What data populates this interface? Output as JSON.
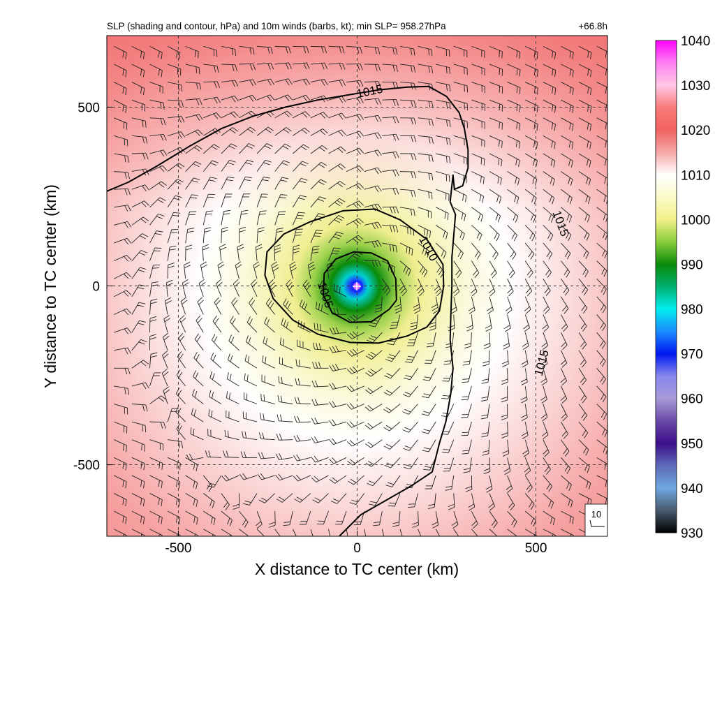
{
  "chart_data": {
    "type": "heatmap",
    "title": "SLP (shading and contour, hPa) and 10m winds (barbs, kt); min SLP= 958.27hPa",
    "time_label": "+66.8h",
    "xlabel": "X distance to TC center (km)",
    "ylabel": "Y distance to TC center (km)",
    "xlim": [
      -700,
      700
    ],
    "ylim": [
      -700,
      700
    ],
    "x_ticks": [
      -500,
      0,
      500
    ],
    "y_ticks": [
      -500,
      0,
      500
    ],
    "x_tick_labels": [
      "-500",
      "0",
      "500"
    ],
    "y_tick_labels": [
      "-500",
      "0",
      "500"
    ],
    "grid": "dashed at tick positions",
    "min_slp_hpa": 958.27,
    "center_km": [
      0,
      0
    ],
    "colorbar": {
      "ticks": [
        1040,
        1030,
        1020,
        1010,
        1000,
        990,
        980,
        970,
        960,
        950,
        940,
        930
      ],
      "tick_labels": [
        "1040",
        "1030",
        "1020",
        "1010",
        "1000",
        "990",
        "980",
        "970",
        "960",
        "950",
        "940",
        "930"
      ],
      "stops": [
        {
          "value": 930,
          "color": "#000000"
        },
        {
          "value": 935,
          "color": "#4a5a6e"
        },
        {
          "value": 940,
          "color": "#6fa8e0"
        },
        {
          "value": 945,
          "color": "#5e6ab8"
        },
        {
          "value": 950,
          "color": "#3d0f8a"
        },
        {
          "value": 955,
          "color": "#6a4aa8"
        },
        {
          "value": 960,
          "color": "#a89ad8"
        },
        {
          "value": 965,
          "color": "#8888ee"
        },
        {
          "value": 970,
          "color": "#0018f0"
        },
        {
          "value": 975,
          "color": "#1a8cff"
        },
        {
          "value": 980,
          "color": "#00eeee"
        },
        {
          "value": 985,
          "color": "#00b070"
        },
        {
          "value": 990,
          "color": "#0a8a0a"
        },
        {
          "value": 995,
          "color": "#8acc3a"
        },
        {
          "value": 1000,
          "color": "#f4f08a"
        },
        {
          "value": 1005,
          "color": "#fafac8"
        },
        {
          "value": 1010,
          "color": "#ffffff"
        },
        {
          "value": 1015,
          "color": "#f6a8a8"
        },
        {
          "value": 1020,
          "color": "#f26262"
        },
        {
          "value": 1025,
          "color": "#fa7a7a"
        },
        {
          "value": 1030,
          "color": "#ffc8e6"
        },
        {
          "value": 1035,
          "color": "#ff80f0"
        },
        {
          "value": 1040,
          "color": "#ff00ff"
        }
      ]
    },
    "contours": [
      {
        "level": 1005,
        "label": "1005",
        "points": [
          [
            110,
            -40
          ],
          [
            90,
            -65
          ],
          [
            40,
            -100
          ],
          [
            -20,
            -102
          ],
          [
            -70,
            -75
          ],
          [
            -95,
            -25
          ],
          [
            -92,
            35
          ],
          [
            -60,
            75
          ],
          [
            -10,
            95
          ],
          [
            40,
            92
          ],
          [
            85,
            70
          ],
          [
            108,
            20
          ],
          [
            110,
            -40
          ]
        ],
        "label_at": [
          -88,
          -25
        ],
        "label_angle": 72
      },
      {
        "level": 1010,
        "label": "1010",
        "points": [
          [
            242,
            0
          ],
          [
            230,
            -70
          ],
          [
            195,
            -115
          ],
          [
            140,
            -140
          ],
          [
            60,
            -160
          ],
          [
            -20,
            -158
          ],
          [
            -110,
            -135
          ],
          [
            -180,
            -95
          ],
          [
            -235,
            -35
          ],
          [
            -258,
            30
          ],
          [
            -252,
            95
          ],
          [
            -205,
            145
          ],
          [
            -130,
            180
          ],
          [
            -40,
            210
          ],
          [
            50,
            215
          ],
          [
            120,
            185
          ],
          [
            195,
            130
          ],
          [
            240,
            60
          ],
          [
            242,
            0
          ]
        ],
        "label_at": [
          200,
          105
        ],
        "label_angle": 62
      },
      {
        "level": 1015,
        "label": "1015",
        "points": [
          [
            -700,
            265
          ],
          [
            -640,
            290
          ],
          [
            -560,
            335
          ],
          [
            -470,
            390
          ],
          [
            -380,
            440
          ],
          [
            -290,
            475
          ],
          [
            -200,
            500
          ],
          [
            -110,
            520
          ],
          [
            -20,
            535
          ],
          [
            60,
            548
          ],
          [
            140,
            556
          ],
          [
            200,
            558
          ],
          [
            250,
            530
          ],
          [
            285,
            485
          ],
          [
            300,
            440
          ],
          [
            310,
            380
          ],
          [
            310,
            330
          ],
          [
            295,
            280
          ],
          [
            272,
            270
          ],
          [
            268,
            310
          ],
          [
            260,
            235
          ],
          [
            275,
            200
          ],
          [
            270,
            140
          ],
          [
            265,
            80
          ],
          [
            265,
            0
          ],
          [
            262,
            -80
          ],
          [
            260,
            -150
          ],
          [
            268,
            -230
          ],
          [
            262,
            -300
          ],
          [
            248,
            -380
          ],
          [
            230,
            -440
          ],
          [
            210,
            -520
          ],
          [
            150,
            -560
          ],
          [
            80,
            -600
          ],
          [
            10,
            -640
          ],
          [
            -50,
            -700
          ]
        ],
        "label_at": [
          35,
          545
        ],
        "label_angle": -12
      }
    ],
    "contour_label_positions": [
      {
        "label": "1015",
        "at": [
          570,
          175
        ],
        "angle": 70
      },
      {
        "label": "1015",
        "at": [
          515,
          -215
        ],
        "angle": -75
      }
    ],
    "wind_barbs": {
      "grid_spacing_km": 50,
      "circulation": "cyclonic (counter-clockwise)",
      "reference_barb": {
        "label": "10",
        "units": "kt"
      }
    }
  }
}
